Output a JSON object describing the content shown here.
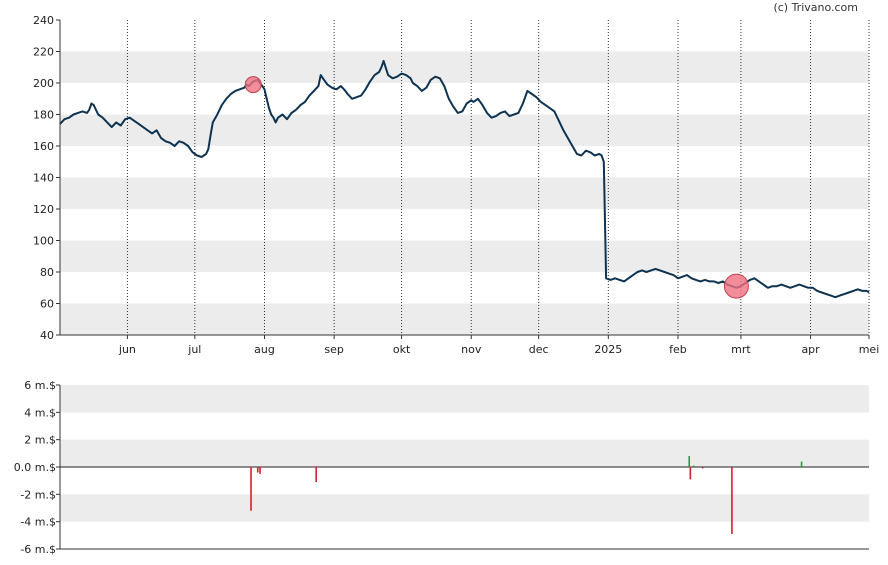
{
  "credit": "(c) Trivano.com",
  "colors": {
    "price_line": "#0d3350",
    "band": "#ececec",
    "marker": "#f07080",
    "buy": "#2a9a3a",
    "sell": "#d0202a"
  },
  "chart_data": [
    {
      "type": "line",
      "name": "price",
      "ylim": [
        40,
        240
      ],
      "yticks": [
        40,
        60,
        80,
        100,
        120,
        140,
        160,
        180,
        200,
        220,
        240
      ],
      "xlim": [
        0,
        360
      ],
      "months": [
        {
          "label": "jun",
          "x": 30
        },
        {
          "label": "jul",
          "x": 60
        },
        {
          "label": "aug",
          "x": 91
        },
        {
          "label": "sep",
          "x": 122
        },
        {
          "label": "okt",
          "x": 152
        },
        {
          "label": "nov",
          "x": 183
        },
        {
          "label": "dec",
          "x": 213
        },
        {
          "label": "2025",
          "x": 244
        },
        {
          "label": "feb",
          "x": 275
        },
        {
          "label": "mrt",
          "x": 303
        },
        {
          "label": "apr",
          "x": 334
        },
        {
          "label": "mei",
          "x": 364
        }
      ],
      "points": [
        [
          0,
          174
        ],
        [
          2,
          177
        ],
        [
          4,
          178
        ],
        [
          6,
          180
        ],
        [
          8,
          181
        ],
        [
          10,
          182
        ],
        [
          12,
          181
        ],
        [
          13,
          183
        ],
        [
          14,
          187
        ],
        [
          15,
          186
        ],
        [
          17,
          180
        ],
        [
          19,
          178
        ],
        [
          21,
          175
        ],
        [
          23,
          172
        ],
        [
          25,
          175
        ],
        [
          27,
          173
        ],
        [
          29,
          177
        ],
        [
          31,
          178
        ],
        [
          33,
          176
        ],
        [
          35,
          174
        ],
        [
          37,
          172
        ],
        [
          39,
          170
        ],
        [
          41,
          168
        ],
        [
          43,
          170
        ],
        [
          45,
          165
        ],
        [
          47,
          163
        ],
        [
          49,
          162
        ],
        [
          51,
          160
        ],
        [
          53,
          163
        ],
        [
          55,
          162
        ],
        [
          57,
          160
        ],
        [
          59,
          156
        ],
        [
          61,
          154
        ],
        [
          63,
          153
        ],
        [
          65,
          155
        ],
        [
          66,
          158
        ],
        [
          67,
          167
        ],
        [
          68,
          175
        ],
        [
          70,
          180
        ],
        [
          72,
          186
        ],
        [
          74,
          190
        ],
        [
          76,
          193
        ],
        [
          78,
          195
        ],
        [
          80,
          196
        ],
        [
          82,
          197
        ],
        [
          83,
          199
        ],
        [
          84,
          198
        ],
        [
          86,
          201
        ],
        [
          88,
          202
        ],
        [
          89,
          200
        ],
        [
          90,
          198
        ],
        [
          91,
          196
        ],
        [
          92,
          190
        ],
        [
          93,
          184
        ],
        [
          94,
          180
        ],
        [
          95,
          178
        ],
        [
          96,
          175
        ],
        [
          97,
          178
        ],
        [
          99,
          180
        ],
        [
          101,
          177
        ],
        [
          103,
          181
        ],
        [
          105,
          183
        ],
        [
          107,
          186
        ],
        [
          109,
          188
        ],
        [
          111,
          192
        ],
        [
          113,
          195
        ],
        [
          115,
          198
        ],
        [
          116,
          205
        ],
        [
          117,
          203
        ],
        [
          119,
          199
        ],
        [
          121,
          197
        ],
        [
          123,
          196
        ],
        [
          125,
          198
        ],
        [
          127,
          195
        ],
        [
          128,
          193
        ],
        [
          130,
          190
        ],
        [
          132,
          191
        ],
        [
          134,
          192
        ],
        [
          136,
          196
        ],
        [
          138,
          201
        ],
        [
          140,
          205
        ],
        [
          142,
          207
        ],
        [
          143,
          210
        ],
        [
          144,
          214
        ],
        [
          146,
          205
        ],
        [
          148,
          203
        ],
        [
          150,
          204
        ],
        [
          152,
          206
        ],
        [
          154,
          205
        ],
        [
          156,
          203
        ],
        [
          157,
          200
        ],
        [
          159,
          198
        ],
        [
          161,
          195
        ],
        [
          163,
          197
        ],
        [
          165,
          202
        ],
        [
          167,
          204
        ],
        [
          169,
          203
        ],
        [
          171,
          198
        ],
        [
          173,
          190
        ],
        [
          175,
          185
        ],
        [
          177,
          181
        ],
        [
          179,
          182
        ],
        [
          181,
          187
        ],
        [
          183,
          189
        ],
        [
          184,
          188
        ],
        [
          186,
          190
        ],
        [
          188,
          186
        ],
        [
          190,
          181
        ],
        [
          192,
          178
        ],
        [
          194,
          179
        ],
        [
          196,
          181
        ],
        [
          198,
          182
        ],
        [
          200,
          179
        ],
        [
          202,
          180
        ],
        [
          204,
          181
        ],
        [
          206,
          187
        ],
        [
          208,
          195
        ],
        [
          210,
          193
        ],
        [
          212,
          191
        ],
        [
          214,
          188
        ],
        [
          216,
          186
        ],
        [
          218,
          184
        ],
        [
          220,
          182
        ],
        [
          222,
          176
        ],
        [
          224,
          170
        ],
        [
          226,
          165
        ],
        [
          228,
          160
        ],
        [
          230,
          155
        ],
        [
          232,
          154
        ],
        [
          234,
          157
        ],
        [
          236,
          156
        ],
        [
          238,
          154
        ],
        [
          240,
          155
        ],
        [
          241,
          154
        ],
        [
          242,
          150
        ],
        [
          243,
          76
        ],
        [
          245,
          75
        ],
        [
          247,
          76
        ],
        [
          249,
          75
        ],
        [
          251,
          74
        ],
        [
          253,
          76
        ],
        [
          255,
          78
        ],
        [
          257,
          80
        ],
        [
          259,
          81
        ],
        [
          261,
          80
        ],
        [
          263,
          81
        ],
        [
          265,
          82
        ],
        [
          267,
          81
        ],
        [
          269,
          80
        ],
        [
          271,
          79
        ],
        [
          273,
          78
        ],
        [
          275,
          76
        ],
        [
          277,
          77
        ],
        [
          279,
          78
        ],
        [
          281,
          76
        ],
        [
          283,
          75
        ],
        [
          285,
          74
        ],
        [
          287,
          75
        ],
        [
          289,
          74
        ],
        [
          291,
          74
        ],
        [
          293,
          73
        ],
        [
          295,
          74
        ],
        [
          297,
          72
        ],
        [
          299,
          71
        ],
        [
          301,
          70
        ],
        [
          303,
          71
        ],
        [
          305,
          73
        ],
        [
          307,
          75
        ],
        [
          309,
          76
        ],
        [
          311,
          74
        ],
        [
          313,
          72
        ],
        [
          315,
          70
        ],
        [
          317,
          71
        ],
        [
          319,
          71
        ],
        [
          321,
          72
        ],
        [
          323,
          71
        ],
        [
          325,
          70
        ],
        [
          327,
          71
        ],
        [
          329,
          72
        ],
        [
          331,
          71
        ],
        [
          333,
          70
        ],
        [
          335,
          70
        ],
        [
          337,
          68
        ],
        [
          339,
          67
        ],
        [
          341,
          66
        ],
        [
          343,
          65
        ],
        [
          345,
          64
        ],
        [
          347,
          65
        ],
        [
          349,
          66
        ],
        [
          351,
          67
        ],
        [
          353,
          68
        ],
        [
          355,
          69
        ],
        [
          357,
          68
        ],
        [
          359,
          68
        ],
        [
          360,
          67
        ]
      ],
      "markers": [
        {
          "x": 86,
          "y": 199,
          "size": "small"
        },
        {
          "x": 301,
          "y": 71,
          "size": "large"
        }
      ]
    },
    {
      "type": "bar",
      "name": "volume",
      "ylim": [
        -6,
        6
      ],
      "yticks": [
        "-6 m.$",
        "-4 m.$",
        "-2 m.$",
        "0.0 m.$",
        "2 m.$",
        "4 m.$",
        "6 m.$"
      ],
      "ytick_values": [
        -6,
        -4,
        -2,
        0,
        2,
        4,
        6
      ],
      "bars": [
        {
          "x": 85,
          "value": -3.2
        },
        {
          "x": 88,
          "value": -0.4
        },
        {
          "x": 89,
          "value": -0.5
        },
        {
          "x": 114,
          "value": -1.1
        },
        {
          "x": 280,
          "value": 0.8
        },
        {
          "x": 280.5,
          "value": -0.9
        },
        {
          "x": 282,
          "value": 0.1
        },
        {
          "x": 286,
          "value": -0.1
        },
        {
          "x": 299,
          "value": -4.9
        },
        {
          "x": 330,
          "value": 0.4
        }
      ]
    }
  ]
}
